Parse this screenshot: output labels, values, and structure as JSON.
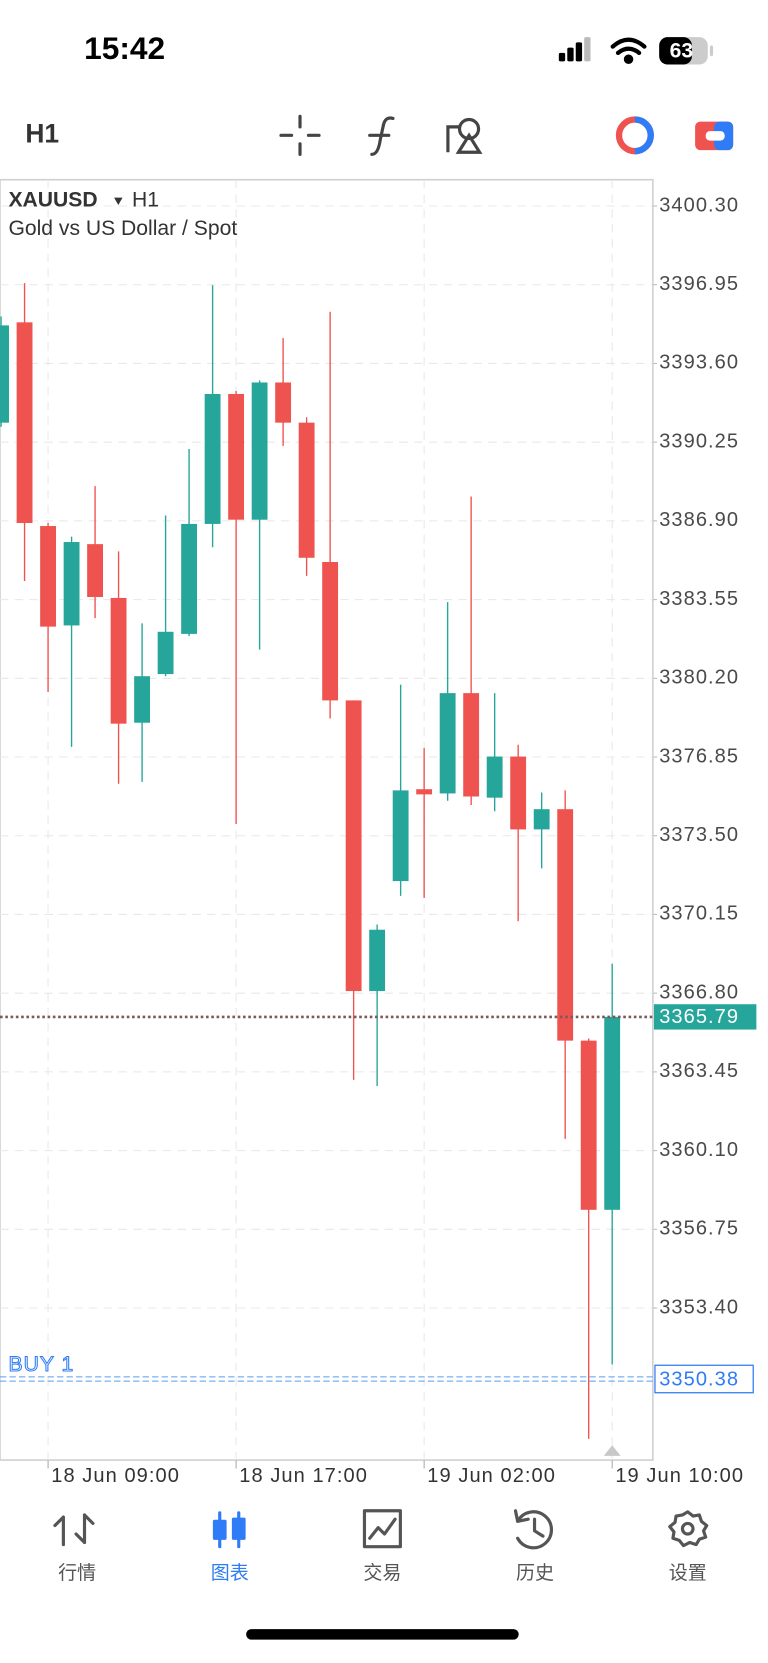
{
  "status_bar": {
    "time": "15:42",
    "battery": "63"
  },
  "toolbar": {
    "timeframe": "H1"
  },
  "chart_data": {
    "type": "candlestick",
    "symbol": "XAUUSD",
    "timeframe": "H1",
    "subtitle": "Gold vs US Dollar / Spot",
    "categories": [
      null,
      null,
      "18 Jun 09:00",
      null,
      null,
      null,
      null,
      null,
      null,
      null,
      "18 Jun 17:00",
      null,
      null,
      null,
      null,
      null,
      null,
      null,
      "19 Jun 02:00",
      null,
      null,
      null,
      null,
      null,
      null,
      null,
      "19 Jun 10:00"
    ],
    "open": [
      3391.08,
      3395.35,
      3386.68,
      3382.45,
      3385.91,
      3383.62,
      3378.31,
      3380.38,
      3382.09,
      3386.77,
      3392.3,
      3386.95,
      3392.79,
      3391.08,
      3385.15,
      3379.26,
      3366.89,
      3371.57,
      3375.48,
      3375.3,
      3379.57,
      3375.12,
      3376.87,
      3373.77,
      3374.63,
      3364.78,
      3357.58
    ],
    "high": [
      3395.6,
      3397.02,
      3386.81,
      3386.23,
      3388.38,
      3385.6,
      3382.54,
      3387.13,
      3389.96,
      3396.93,
      3392.43,
      3392.88,
      3394.68,
      3391.31,
      3395.8,
      3379.26,
      3369.72,
      3379.93,
      3377.23,
      3383.44,
      3387.94,
      3379.57,
      3377.37,
      3375.34,
      3375.43,
      3364.87,
      3368.06
    ],
    "low": [
      3390.9,
      3384.34,
      3379.62,
      3377.28,
      3382.76,
      3375.71,
      3375.79,
      3380.29,
      3382.0,
      3385.78,
      3374.0,
      3381.42,
      3390.09,
      3384.56,
      3378.49,
      3363.11,
      3362.85,
      3370.94,
      3370.85,
      3374.99,
      3374.81,
      3374.54,
      3369.86,
      3372.11,
      3360.6,
      3347.83,
      3351.0
    ],
    "close": [
      3395.22,
      3386.81,
      3382.4,
      3386.0,
      3383.66,
      3378.27,
      3380.29,
      3382.18,
      3386.77,
      3392.3,
      3386.95,
      3392.79,
      3391.08,
      3385.33,
      3379.26,
      3366.89,
      3369.5,
      3375.43,
      3375.26,
      3379.57,
      3375.17,
      3376.87,
      3373.77,
      3374.63,
      3364.78,
      3357.58,
      3365.79
    ],
    "up_color": "#26a69a",
    "down_color": "#ef5350",
    "ylim": [
      3346.93,
      3401.42
    ],
    "yticks": [
      {
        "value": 3400.3,
        "label": "3400.30"
      },
      3396.95,
      {
        "value": 3393.6,
        "label": "3393.60"
      },
      3390.25,
      {
        "value": 3386.9,
        "label": "3386.90"
      },
      3383.55,
      {
        "value": 3380.2,
        "label": "3380.20"
      },
      3376.85,
      {
        "value": 3373.5,
        "label": "3373.50"
      },
      3370.15,
      {
        "value": 3366.8,
        "label": "3366.80"
      },
      3363.45,
      {
        "value": 3360.1,
        "label": "3360.10"
      },
      3356.75,
      {
        "value": 3353.4,
        "label": "3353.40"
      }
    ],
    "grid": true,
    "current_price": 3365.79,
    "order": {
      "label": "BUY 1",
      "price": 3350.38
    }
  },
  "tab_bar": {
    "tabs": [
      {
        "label": "行情"
      },
      {
        "label": "图表"
      },
      {
        "label": "交易"
      },
      {
        "label": "历史"
      },
      {
        "label": "设置"
      }
    ],
    "active": 1
  }
}
